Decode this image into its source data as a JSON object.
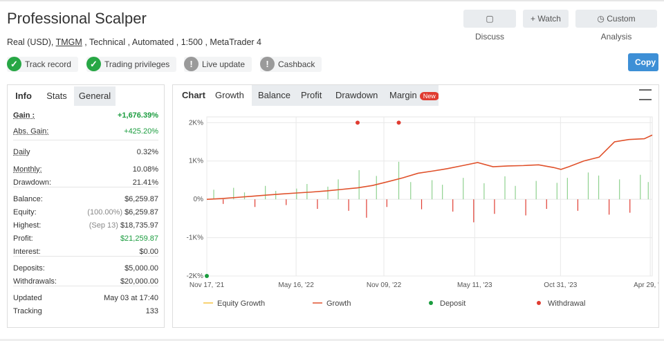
{
  "header": {
    "title": "Professional Scalper",
    "subtitle_prefix": "Real (USD),",
    "broker": "TMGM",
    "subtitle_rest": ", Technical , Automated , 1:500 , MetaTrader 4"
  },
  "buttons": [
    "Discuss",
    "Watch",
    "Custom Analysis",
    "Copy"
  ],
  "badges": [
    {
      "label": "Track record",
      "status": "ok"
    },
    {
      "label": "Trading privileges",
      "status": "ok"
    },
    {
      "label": "Live update",
      "status": "warn"
    },
    {
      "label": "Cashback",
      "status": "warn"
    }
  ],
  "info": {
    "tabs": [
      "Info",
      "Stats",
      "General"
    ],
    "groups": [
      [
        {
          "label": "Gain :",
          "value": "+1,676.39%",
          "color": "#1a9c3e",
          "bold": true
        },
        {
          "label": "Abs. Gain:",
          "value": "+425.20%",
          "color": "#1a9c3e"
        }
      ],
      [
        {
          "label": "Daily",
          "value": "0.32%"
        },
        {
          "label": "Monthly:",
          "value": "10.08%"
        },
        {
          "label": "Drawdown:",
          "value": "21.41%"
        }
      ],
      [
        {
          "label": "Balance:",
          "value": "$6,259.87"
        },
        {
          "label": "Equity:",
          "note": "(100.00%)",
          "value": "$6,259.87"
        },
        {
          "label": "Highest:",
          "note": "(Sep 13)",
          "value": "$18,735.97"
        },
        {
          "label": "Profit:",
          "value": "$21,259.87",
          "color": "#1a9c3e"
        },
        {
          "label": "Interest:",
          "value": "$0.00"
        }
      ],
      [
        {
          "label": "Deposits:",
          "value": "$5,000.00"
        },
        {
          "label": "Withdrawals:",
          "value": "$20,000.00"
        }
      ],
      [
        {
          "label": "Updated",
          "value": "May 03 at 17:40"
        },
        {
          "label": "Tracking",
          "value": "133"
        }
      ]
    ]
  },
  "chart_tabs": {
    "label": "Chart",
    "tabs": [
      "Growth",
      "Balance",
      "Profit",
      "Drawdown",
      "Margin"
    ],
    "badge": "New"
  },
  "chart_data": {
    "type": "line",
    "xlim": [
      "2021-11-17",
      "2024-05-03"
    ],
    "xticks": [
      {
        "value": "2021-11-17",
        "label": "Nov 17, '21"
      },
      {
        "value": "2022-05-16",
        "label": "May 16, '22"
      },
      {
        "value": "2022-11-09",
        "label": "Nov 09, '22"
      },
      {
        "value": "2023-05-11",
        "label": "May 11, '23"
      },
      {
        "value": "2023-10-31",
        "label": "Oct 31, '23"
      },
      {
        "value": "2024-04-29",
        "label": "Apr 29, '24"
      }
    ],
    "ylim": [
      -2000,
      2150
    ],
    "yticks": [
      {
        "value": 2000,
        "label": "2K%"
      },
      {
        "value": 1000,
        "label": "1K%"
      },
      {
        "value": 0,
        "label": "0%"
      },
      {
        "value": -1000,
        "label": "-1K%"
      },
      {
        "value": -2000,
        "label": "-2K%"
      }
    ],
    "grid": true,
    "series": [
      {
        "name": "Equity Growth",
        "color": "#f5c242",
        "marker": "line",
        "x": [],
        "values": []
      },
      {
        "name": "Growth",
        "color": "#e0512b",
        "marker": "line",
        "x": [
          "2021-11-17",
          "2021-12-17",
          "2022-01-17",
          "2022-02-17",
          "2022-03-17",
          "2022-04-17",
          "2022-05-17",
          "2022-06-17",
          "2022-07-17",
          "2022-08-17",
          "2022-09-17",
          "2022-10-17",
          "2022-11-17",
          "2022-12-17",
          "2023-01-17",
          "2023-02-17",
          "2023-03-17",
          "2023-04-17",
          "2023-05-17",
          "2023-06-17",
          "2023-07-17",
          "2023-08-17",
          "2023-09-17",
          "2023-10-17",
          "2023-11-01",
          "2023-11-17",
          "2023-12-17",
          "2024-01-17",
          "2024-02-17",
          "2024-03-17",
          "2024-04-17",
          "2024-05-03"
        ],
        "values": [
          0,
          20,
          50,
          80,
          110,
          140,
          165,
          190,
          220,
          260,
          300,
          360,
          460,
          560,
          680,
          740,
          800,
          880,
          960,
          850,
          870,
          880,
          900,
          830,
          780,
          850,
          1000,
          1100,
          1500,
          1560,
          1580,
          1676.39
        ]
      },
      {
        "name": "Deposit",
        "color": "#1a9c3e",
        "marker": "dot",
        "x": [
          "2021-11-17"
        ],
        "values": [
          -2000
        ]
      },
      {
        "name": "Withdrawal",
        "color": "#e03c31",
        "marker": "dot",
        "x": [
          "2022-09-17",
          "2022-12-09"
        ],
        "values": [
          2000,
          2000
        ]
      }
    ],
    "daily": {
      "up_color": "#8fd18f",
      "down_color": "#e03c31",
      "x": [
        "2021-12-01",
        "2021-12-20",
        "2022-01-10",
        "2022-02-01",
        "2022-02-22",
        "2022-03-15",
        "2022-04-05",
        "2022-04-26",
        "2022-05-17",
        "2022-06-07",
        "2022-06-28",
        "2022-07-19",
        "2022-08-09",
        "2022-08-30",
        "2022-09-20",
        "2022-10-05",
        "2022-10-25",
        "2022-11-15",
        "2022-12-09",
        "2023-01-02",
        "2023-01-24",
        "2023-02-14",
        "2023-03-07",
        "2023-03-28",
        "2023-04-18",
        "2023-05-09",
        "2023-05-30",
        "2023-06-20",
        "2023-07-11",
        "2023-08-01",
        "2023-08-22",
        "2023-09-12",
        "2023-10-03",
        "2023-10-24",
        "2023-11-14",
        "2023-12-05",
        "2023-12-26",
        "2024-01-16",
        "2024-02-06",
        "2024-02-27",
        "2024-03-19",
        "2024-04-09",
        "2024-04-25"
      ],
      "values": [
        250,
        -120,
        300,
        180,
        -200,
        350,
        220,
        -150,
        280,
        400,
        -250,
        330,
        520,
        -300,
        760,
        -480,
        610,
        -200,
        980,
        450,
        -260,
        500,
        380,
        -320,
        560,
        -600,
        420,
        -380,
        600,
        350,
        -420,
        480,
        -250,
        430,
        560,
        -300,
        700,
        620,
        -400,
        520,
        -350,
        640,
        450
      ]
    }
  },
  "legend_order": [
    0,
    1,
    2,
    3
  ]
}
